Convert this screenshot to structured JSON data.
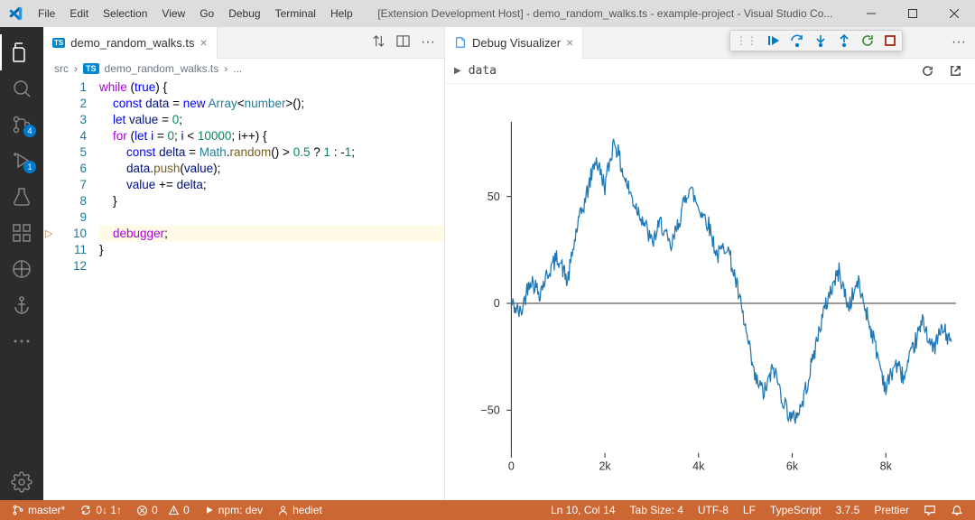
{
  "window": {
    "title": "[Extension Development Host] - demo_random_walks.ts - example-project - Visual Studio Co..."
  },
  "menus": [
    "File",
    "Edit",
    "Selection",
    "View",
    "Go",
    "Debug",
    "Terminal",
    "Help"
  ],
  "activitybar": {
    "badges": {
      "scm": "4",
      "debug": "1"
    }
  },
  "editor": {
    "tab_icon": "TS",
    "tab_label": "demo_random_walks.ts",
    "breadcrumb": {
      "root": "src",
      "file": "demo_random_walks.ts",
      "more": "..."
    },
    "lines": [
      "1",
      "2",
      "3",
      "4",
      "5",
      "6",
      "7",
      "8",
      "9",
      "10",
      "11",
      "12"
    ],
    "highlight_line": 10
  },
  "visualizer": {
    "tab_label": "Debug Visualizer",
    "expression": "data"
  },
  "debug_toolbar": {
    "colors": {
      "continue": "#388a34",
      "step": "#007acc",
      "restart": "#388a34",
      "stop": "#a1260d"
    }
  },
  "statusbar": {
    "branch": "master*",
    "sync": "0↓ 1↑",
    "errors": "0",
    "warnings": "0",
    "task": "npm: dev",
    "user": "hediet",
    "cursor": "Ln 10, Col 14",
    "tab_size": "Tab Size: 4",
    "encoding": "UTF-8",
    "eol": "LF",
    "lang": "TypeScript",
    "version": "3.7.5",
    "formatter": "Prettier",
    "bg_color": "#cc6633"
  },
  "chart": {
    "type": "line",
    "line_color": "#1f77b4",
    "line_width": 1.2,
    "background_color": "#ffffff",
    "axis_color": "#333333",
    "tick_fontsize": 12,
    "xlim": [
      0,
      9500
    ],
    "ylim": [
      -70,
      85
    ],
    "xticks": [
      0,
      2000,
      4000,
      6000,
      8000
    ],
    "xtick_labels": [
      "0",
      "2k",
      "4k",
      "6k",
      "8k"
    ],
    "yticks": [
      -50,
      0,
      50
    ],
    "ytick_labels": [
      "−50",
      "0",
      "50"
    ],
    "anchors": [
      [
        0,
        0
      ],
      [
        200,
        -5
      ],
      [
        400,
        12
      ],
      [
        600,
        5
      ],
      [
        800,
        15
      ],
      [
        1000,
        22
      ],
      [
        1200,
        10
      ],
      [
        1400,
        35
      ],
      [
        1600,
        50
      ],
      [
        1800,
        68
      ],
      [
        2000,
        55
      ],
      [
        2200,
        77
      ],
      [
        2400,
        60
      ],
      [
        2600,
        48
      ],
      [
        2800,
        40
      ],
      [
        3000,
        28
      ],
      [
        3200,
        38
      ],
      [
        3400,
        25
      ],
      [
        3600,
        40
      ],
      [
        3800,
        55
      ],
      [
        4000,
        45
      ],
      [
        4200,
        38
      ],
      [
        4400,
        22
      ],
      [
        4600,
        28
      ],
      [
        4800,
        10
      ],
      [
        5000,
        -12
      ],
      [
        5200,
        -35
      ],
      [
        5400,
        -42
      ],
      [
        5600,
        -30
      ],
      [
        5800,
        -45
      ],
      [
        6000,
        -55
      ],
      [
        6200,
        -48
      ],
      [
        6400,
        -30
      ],
      [
        6600,
        -10
      ],
      [
        6800,
        5
      ],
      [
        7000,
        15
      ],
      [
        7200,
        -2
      ],
      [
        7400,
        10
      ],
      [
        7600,
        -5
      ],
      [
        7800,
        -22
      ],
      [
        8000,
        -40
      ],
      [
        8200,
        -28
      ],
      [
        8400,
        -35
      ],
      [
        8600,
        -20
      ],
      [
        8800,
        -8
      ],
      [
        9000,
        -22
      ],
      [
        9200,
        -12
      ],
      [
        9400,
        -18
      ]
    ]
  }
}
